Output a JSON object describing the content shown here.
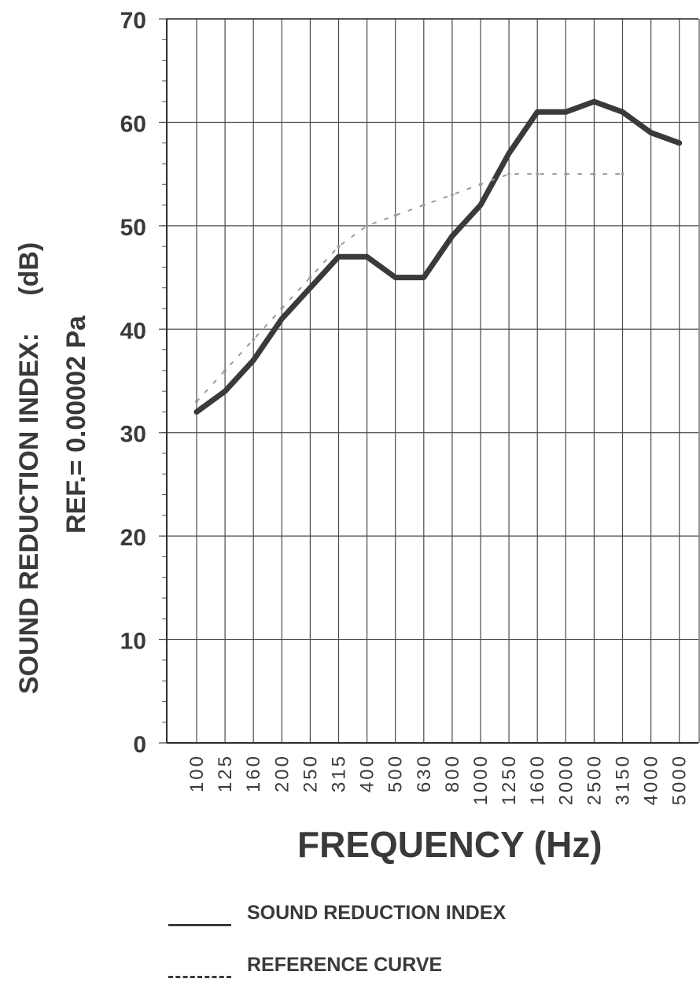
{
  "chart_data": {
    "type": "line",
    "xlabel": "FREQUENCY (Hz)",
    "ylabel_line1": "SOUND REDUCTION INDEX:",
    "ylabel_unit": "(dB)",
    "ylabel_line2": "REF.= 0.00002 Pa",
    "ylim": [
      0,
      70
    ],
    "yticks": [
      0,
      10,
      20,
      30,
      40,
      50,
      60,
      70
    ],
    "grid": true,
    "categories": [
      "100",
      "125",
      "160",
      "200",
      "250",
      "315",
      "400",
      "500",
      "630",
      "800",
      "1000",
      "1250",
      "1600",
      "2000",
      "2500",
      "3150",
      "4000",
      "5000"
    ],
    "series": [
      {
        "name": "SOUND REDUCTION INDEX",
        "style": "solid",
        "color": "#3a3a3a",
        "values": [
          32,
          34,
          37,
          41,
          44,
          47,
          47,
          45,
          45,
          49,
          52,
          57,
          61,
          61,
          62,
          61,
          59,
          58
        ]
      },
      {
        "name": "REFERENCE CURVE",
        "style": "dashed",
        "color": "#9a9a9a",
        "values": [
          33,
          36,
          39,
          42,
          45,
          48,
          50,
          51,
          52,
          53,
          54,
          55,
          55,
          55,
          55,
          55,
          null,
          null
        ]
      }
    ],
    "legend_position": "bottom-left"
  }
}
